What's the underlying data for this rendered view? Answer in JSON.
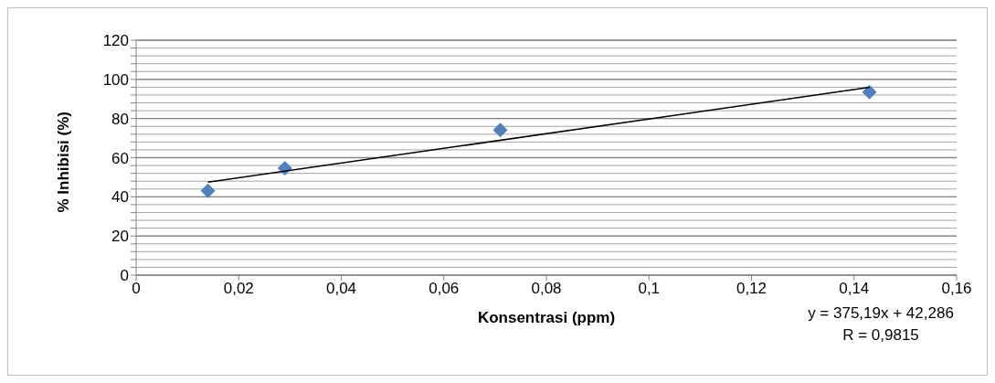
{
  "chart_data": {
    "type": "scatter",
    "xlabel": "Konsentrasi (ppm)",
    "ylabel": "% Inhibisi (%)",
    "series": [
      {
        "color": "#4f81bd",
        "x": [
          0.014,
          0.029,
          0.071,
          0.143
        ],
        "values": [
          43.1,
          54.6,
          74.1,
          93.5
        ],
        "marker": "diamond"
      },
      {
        "type": "line",
        "color": "#000000",
        "x": [
          0.014,
          0.143
        ],
        "values": [
          47.5,
          95.9
        ],
        "marker": "none"
      }
    ],
    "xlim": [
      0,
      0.16
    ],
    "xticks": [
      0,
      {
        "value": 0.02,
        "label": "0,02"
      },
      {
        "value": 0.04,
        "label": "0,04"
      },
      {
        "value": 0.06,
        "label": "0,06"
      },
      {
        "value": 0.08,
        "label": "0,08"
      },
      {
        "value": 0.1,
        "label": "0,1"
      },
      {
        "value": 0.12,
        "label": "0,12"
      },
      {
        "value": 0.14,
        "label": "0,14"
      },
      {
        "value": 0.16,
        "label": "0,16"
      }
    ],
    "ylim": [
      0,
      120
    ],
    "yticks": [
      0,
      {
        "value": 4,
        "label": null
      },
      {
        "value": 8,
        "label": null
      },
      {
        "value": 12,
        "label": null
      },
      {
        "value": 16,
        "label": null
      },
      20,
      {
        "value": 24,
        "label": null
      },
      {
        "value": 28,
        "label": null
      },
      {
        "value": 32,
        "label": null
      },
      {
        "value": 36,
        "label": null
      },
      40,
      {
        "value": 44,
        "label": null
      },
      {
        "value": 48,
        "label": null
      },
      {
        "value": 52,
        "label": null
      },
      {
        "value": 56,
        "label": null
      },
      60,
      {
        "value": 64,
        "label": null
      },
      {
        "value": 68,
        "label": null
      },
      {
        "value": 72,
        "label": null
      },
      {
        "value": 76,
        "label": null
      },
      80,
      {
        "value": 84,
        "label": null
      },
      {
        "value": 88,
        "label": null
      },
      {
        "value": 92,
        "label": null
      },
      {
        "value": 96,
        "label": null
      },
      100,
      {
        "value": 104,
        "label": null
      },
      {
        "value": 108,
        "label": null
      },
      {
        "value": 112,
        "label": null
      },
      {
        "value": 116,
        "label": null
      },
      120
    ],
    "grid": "y",
    "annotations": [
      "y = 375,19x + 42,286",
      "R = 0,9815"
    ]
  }
}
